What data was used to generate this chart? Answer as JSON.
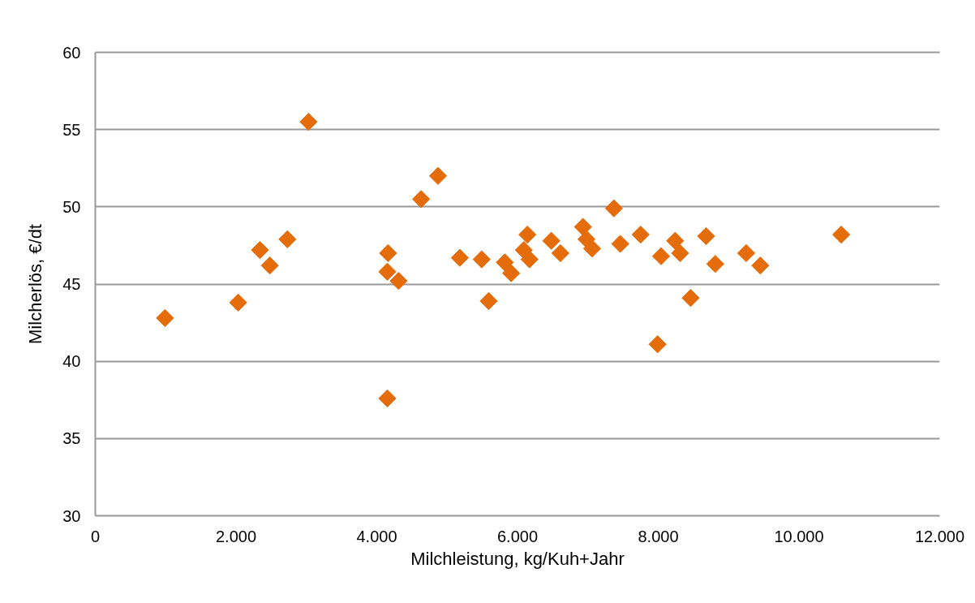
{
  "chart_data": {
    "type": "scatter",
    "xlabel": "Milchleistung, kg/Kuh+Jahr",
    "ylabel": "Milcherlös, €/dt",
    "x": [
      990,
      2030,
      2340,
      2480,
      2730,
      3030,
      4150,
      4160,
      4150,
      4310,
      4630,
      4870,
      5180,
      5490,
      5590,
      5820,
      5910,
      6090,
      6140,
      6170,
      6480,
      6610,
      6930,
      6980,
      7060,
      7370,
      7460,
      7750,
      7990,
      8040,
      8240,
      8310,
      8460,
      8680,
      8810,
      9250,
      9450,
      10600
    ],
    "series": [
      {
        "color": "#e46c0a",
        "values": [
          42.8,
          43.8,
          47.2,
          46.2,
          47.9,
          55.5,
          37.6,
          47.0,
          45.8,
          45.2,
          50.5,
          52.0,
          46.7,
          46.6,
          43.9,
          46.4,
          45.7,
          47.2,
          48.2,
          46.6,
          47.8,
          47.0,
          48.7,
          47.9,
          47.3,
          49.9,
          47.6,
          48.2,
          41.1,
          46.8,
          47.8,
          47.0,
          44.1,
          48.1,
          46.3,
          47.0,
          46.2,
          48.2
        ]
      }
    ],
    "marker": "diamond",
    "grid": "y",
    "xlim": [
      0,
      12000
    ],
    "ylim": [
      30,
      60
    ],
    "xticks": [
      0,
      {
        "value": 2000,
        "label": "2.000"
      },
      {
        "value": 4000,
        "label": "4.000"
      },
      {
        "value": 6000,
        "label": "6.000"
      },
      {
        "value": 8000,
        "label": "8.000"
      },
      {
        "value": 10000,
        "label": "10.000"
      },
      {
        "value": 12000,
        "label": "12.000"
      }
    ],
    "yticks": [
      30,
      35,
      40,
      45,
      50,
      55,
      60
    ]
  }
}
